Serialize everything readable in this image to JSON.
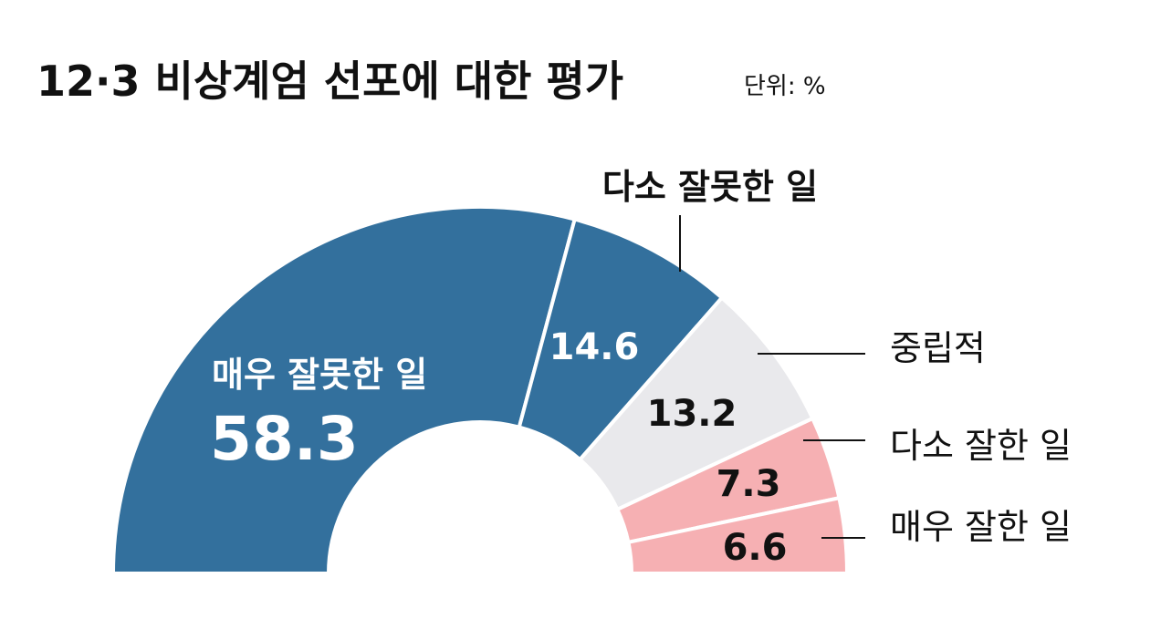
{
  "header": {
    "title": "12·3 비상계엄 선포에 대한 평가",
    "unit": "단위: %"
  },
  "chart_data": {
    "type": "pie",
    "style": "half-donut",
    "title": "12·3 비상계엄 선포에 대한 평가",
    "unit_label": "단위: %",
    "categories": [
      "매우 잘못한 일",
      "다소 잘못한 일",
      "중립적",
      "다소 잘한 일",
      "매우 잘한 일"
    ],
    "values": [
      58.3,
      14.6,
      13.2,
      7.3,
      6.6
    ],
    "value_labels": [
      "58.3",
      "14.6",
      "13.2",
      "7.3",
      "6.6"
    ],
    "colors": [
      "#33709d",
      "#33709d",
      "#e9e9ec",
      "#f6b0b3",
      "#f6b0b3"
    ],
    "value_label_colors": [
      "#ffffff",
      "#ffffff",
      "#111111",
      "#111111",
      "#111111"
    ]
  }
}
